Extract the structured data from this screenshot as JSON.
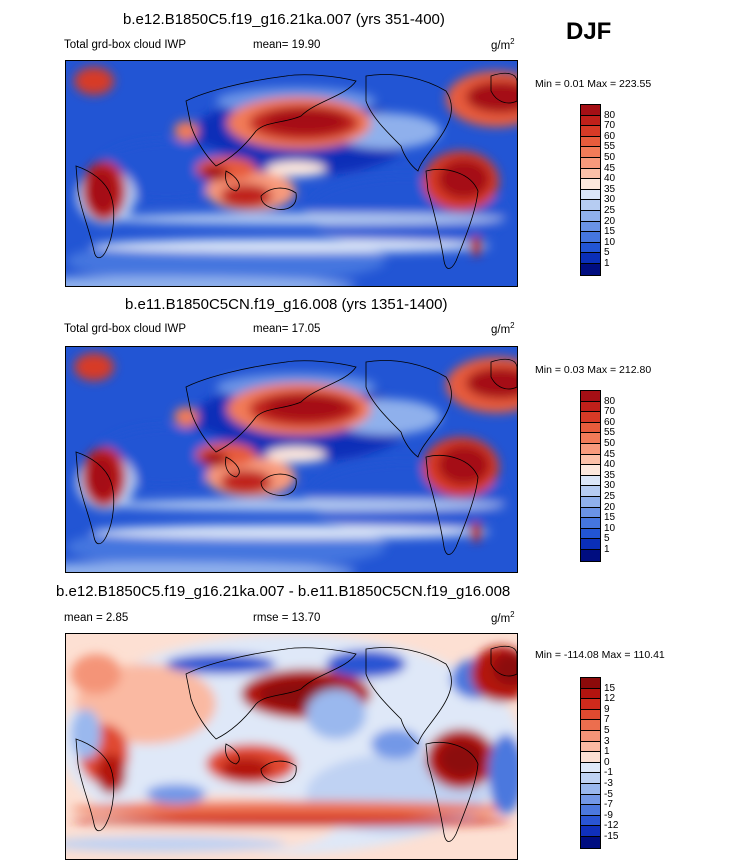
{
  "season": "DJF",
  "panels": [
    {
      "title": "b.e12.B1850C5.f19_g16.21ka.007 (yrs 351-400)",
      "left_label": "Total grd-box cloud IWP",
      "mid_label": "mean=  19.90",
      "units_base": "g/m",
      "units_exp": "2",
      "minmax": "Min =   0.01 Max = 223.55",
      "colorbar": {
        "labels": [
          "80",
          "70",
          "60",
          "55",
          "50",
          "45",
          "40",
          "35",
          "30",
          "25",
          "20",
          "15",
          "10",
          "5",
          "1"
        ],
        "colors": [
          "#a50f15",
          "#c0201a",
          "#d73a26",
          "#e75c3c",
          "#f27b58",
          "#f89a7c",
          "#fcc0a8",
          "#fde8dd",
          "#dbe6f8",
          "#b6ccf2",
          "#8fb0ec",
          "#6a93e6",
          "#4576df",
          "#2255d4",
          "#0a2fb8",
          "#000d80"
        ]
      },
      "map_style": "abs"
    },
    {
      "title": "b.e11.B1850C5CN.f19_g16.008 (yrs 1351-1400)",
      "left_label": "Total grd-box cloud IWP",
      "mid_label": "mean=  17.05",
      "units_base": "g/m",
      "units_exp": "2",
      "minmax": "Min =   0.03 Max = 212.80",
      "colorbar": {
        "labels": [
          "80",
          "70",
          "60",
          "55",
          "50",
          "45",
          "40",
          "35",
          "30",
          "25",
          "20",
          "15",
          "10",
          "5",
          "1"
        ],
        "colors": [
          "#a50f15",
          "#c0201a",
          "#d73a26",
          "#e75c3c",
          "#f27b58",
          "#f89a7c",
          "#fcc0a8",
          "#fde8dd",
          "#dbe6f8",
          "#b6ccf2",
          "#8fb0ec",
          "#6a93e6",
          "#4576df",
          "#2255d4",
          "#0a2fb8",
          "#000d80"
        ]
      },
      "map_style": "abs"
    },
    {
      "title": "b.e12.B1850C5.f19_g16.21ka.007 - b.e11.B1850C5CN.f19_g16.008",
      "left_label": "mean =   2.85",
      "mid_label": "rmse =  13.70",
      "units_base": "g/m",
      "units_exp": "2",
      "minmax": "Min = -114.08 Max = 110.41",
      "colorbar": {
        "labels": [
          "15",
          "12",
          "9",
          "7",
          "5",
          "3",
          "1",
          "0",
          "-1",
          "-3",
          "-5",
          "-7",
          "-9",
          "-12",
          "-15"
        ],
        "colors": [
          "#8c0a0a",
          "#b3140f",
          "#cf2a1c",
          "#e04a30",
          "#ec6e4e",
          "#f49478",
          "#fab9a2",
          "#fde0d3",
          "#dfe8f8",
          "#bfd2f3",
          "#9ab8ee",
          "#7398e7",
          "#4c78de",
          "#2a55d3",
          "#1030bb",
          "#000d80"
        ]
      },
      "map_style": "diff"
    }
  ]
}
